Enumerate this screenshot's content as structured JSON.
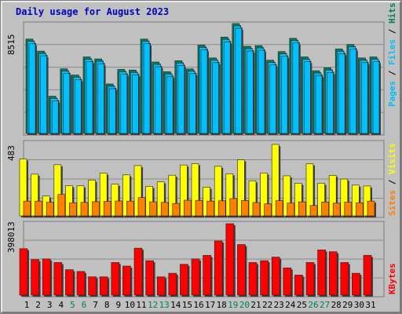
{
  "page": {
    "title": "Daily usage for August 2023"
  },
  "colors": {
    "background": "#c0c0c0",
    "title": "#0000c0",
    "hits": "#00805c",
    "files": "#00c0ff",
    "pages": "#00c0ff",
    "visits": "#ffff00",
    "sites": "#ff8000",
    "kbytes": "#ff0000",
    "weekday_tick": "#000000",
    "weekend_tick": "#00805c"
  },
  "chart_data": [
    {
      "type": "bar",
      "panel": "hits-files-pages",
      "categories": [
        "1",
        "2",
        "3",
        "4",
        "5",
        "6",
        "7",
        "8",
        "9",
        "10",
        "11",
        "12",
        "13",
        "14",
        "15",
        "16",
        "17",
        "18",
        "19",
        "20",
        "21",
        "22",
        "23",
        "24",
        "25",
        "26",
        "27",
        "28",
        "29",
        "30",
        "31"
      ],
      "weekend_days": [
        "5",
        "6",
        "12",
        "13",
        "19",
        "20",
        "26",
        "27"
      ],
      "y_max_label": "8515",
      "ylim": [
        0,
        8515
      ],
      "series": [
        {
          "name": "Hits",
          "values": [
            7314,
            6378,
            2886,
            5008,
            4527,
            5931,
            5773,
            3835,
            4962,
            4912,
            7314,
            5534,
            4785,
            5637,
            4999,
            6848,
            5852,
            7467,
            8515,
            6753,
            6803,
            5676,
            6345,
            7372,
            5931,
            4860,
            5090,
            6548,
            6893,
            5852,
            5931
          ]
        },
        {
          "name": "Files",
          "values": [
            7314,
            6378,
            2886,
            5008,
            4527,
            5931,
            5773,
            3835,
            4962,
            4912,
            7314,
            5534,
            4785,
            5637,
            4999,
            6848,
            5852,
            7467,
            8515,
            6753,
            6803,
            5676,
            6345,
            7372,
            5931,
            4860,
            5090,
            6548,
            6893,
            5852,
            5931
          ]
        },
        {
          "name": "Pages",
          "values": [
            7314,
            6378,
            2886,
            5008,
            4527,
            5931,
            5773,
            3835,
            4962,
            4912,
            7314,
            5534,
            4785,
            5637,
            4999,
            6848,
            5852,
            7467,
            8515,
            6753,
            6803,
            5676,
            6345,
            7372,
            5931,
            4860,
            5090,
            6548,
            6893,
            5852,
            5931
          ]
        }
      ]
    },
    {
      "type": "bar",
      "panel": "visits-sites",
      "categories": [
        "1",
        "2",
        "3",
        "4",
        "5",
        "6",
        "7",
        "8",
        "9",
        "10",
        "11",
        "12",
        "13",
        "14",
        "15",
        "16",
        "17",
        "18",
        "19",
        "20",
        "21",
        "22",
        "23",
        "24",
        "25",
        "26",
        "27",
        "28",
        "29",
        "30",
        "31"
      ],
      "y_max_label": "483",
      "ylim": [
        0,
        483
      ],
      "series": [
        {
          "name": "Visits",
          "values": [
            385,
            282,
            134,
            346,
            204,
            203,
            242,
            289,
            214,
            277,
            340,
            200,
            230,
            275,
            344,
            353,
            194,
            335,
            285,
            379,
            237,
            290,
            483,
            271,
            221,
            352,
            221,
            274,
            249,
            208,
            202
          ]
        },
        {
          "name": "Sites",
          "values": [
            100,
            100,
            92,
            145,
            88,
            91,
            96,
            98,
            101,
            100,
            124,
            95,
            91,
            84,
            106,
            105,
            100,
            102,
            117,
            104,
            90,
            81,
            103,
            87,
            95,
            70,
            94,
            86,
            93,
            89,
            100
          ]
        }
      ]
    },
    {
      "type": "bar",
      "panel": "kbytes",
      "categories": [
        "1",
        "2",
        "3",
        "4",
        "5",
        "6",
        "7",
        "8",
        "9",
        "10",
        "11",
        "12",
        "13",
        "14",
        "15",
        "16",
        "17",
        "18",
        "19",
        "20",
        "21",
        "22",
        "23",
        "24",
        "25",
        "26",
        "27",
        "28",
        "29",
        "30",
        "31"
      ],
      "y_max_label": "398013",
      "ylim": [
        0,
        398013
      ],
      "series": [
        {
          "name": "KBytes",
          "values": [
            259000,
            198000,
            202000,
            182000,
            142000,
            132000,
            102000,
            102000,
            182000,
            162000,
            262000,
            192000,
            102000,
            122000,
            172000,
            202000,
            222000,
            302000,
            398013,
            282000,
            182000,
            192000,
            212000,
            152000,
            112000,
            182000,
            252000,
            242000,
            182000,
            122000,
            222000
          ]
        }
      ]
    }
  ]
}
